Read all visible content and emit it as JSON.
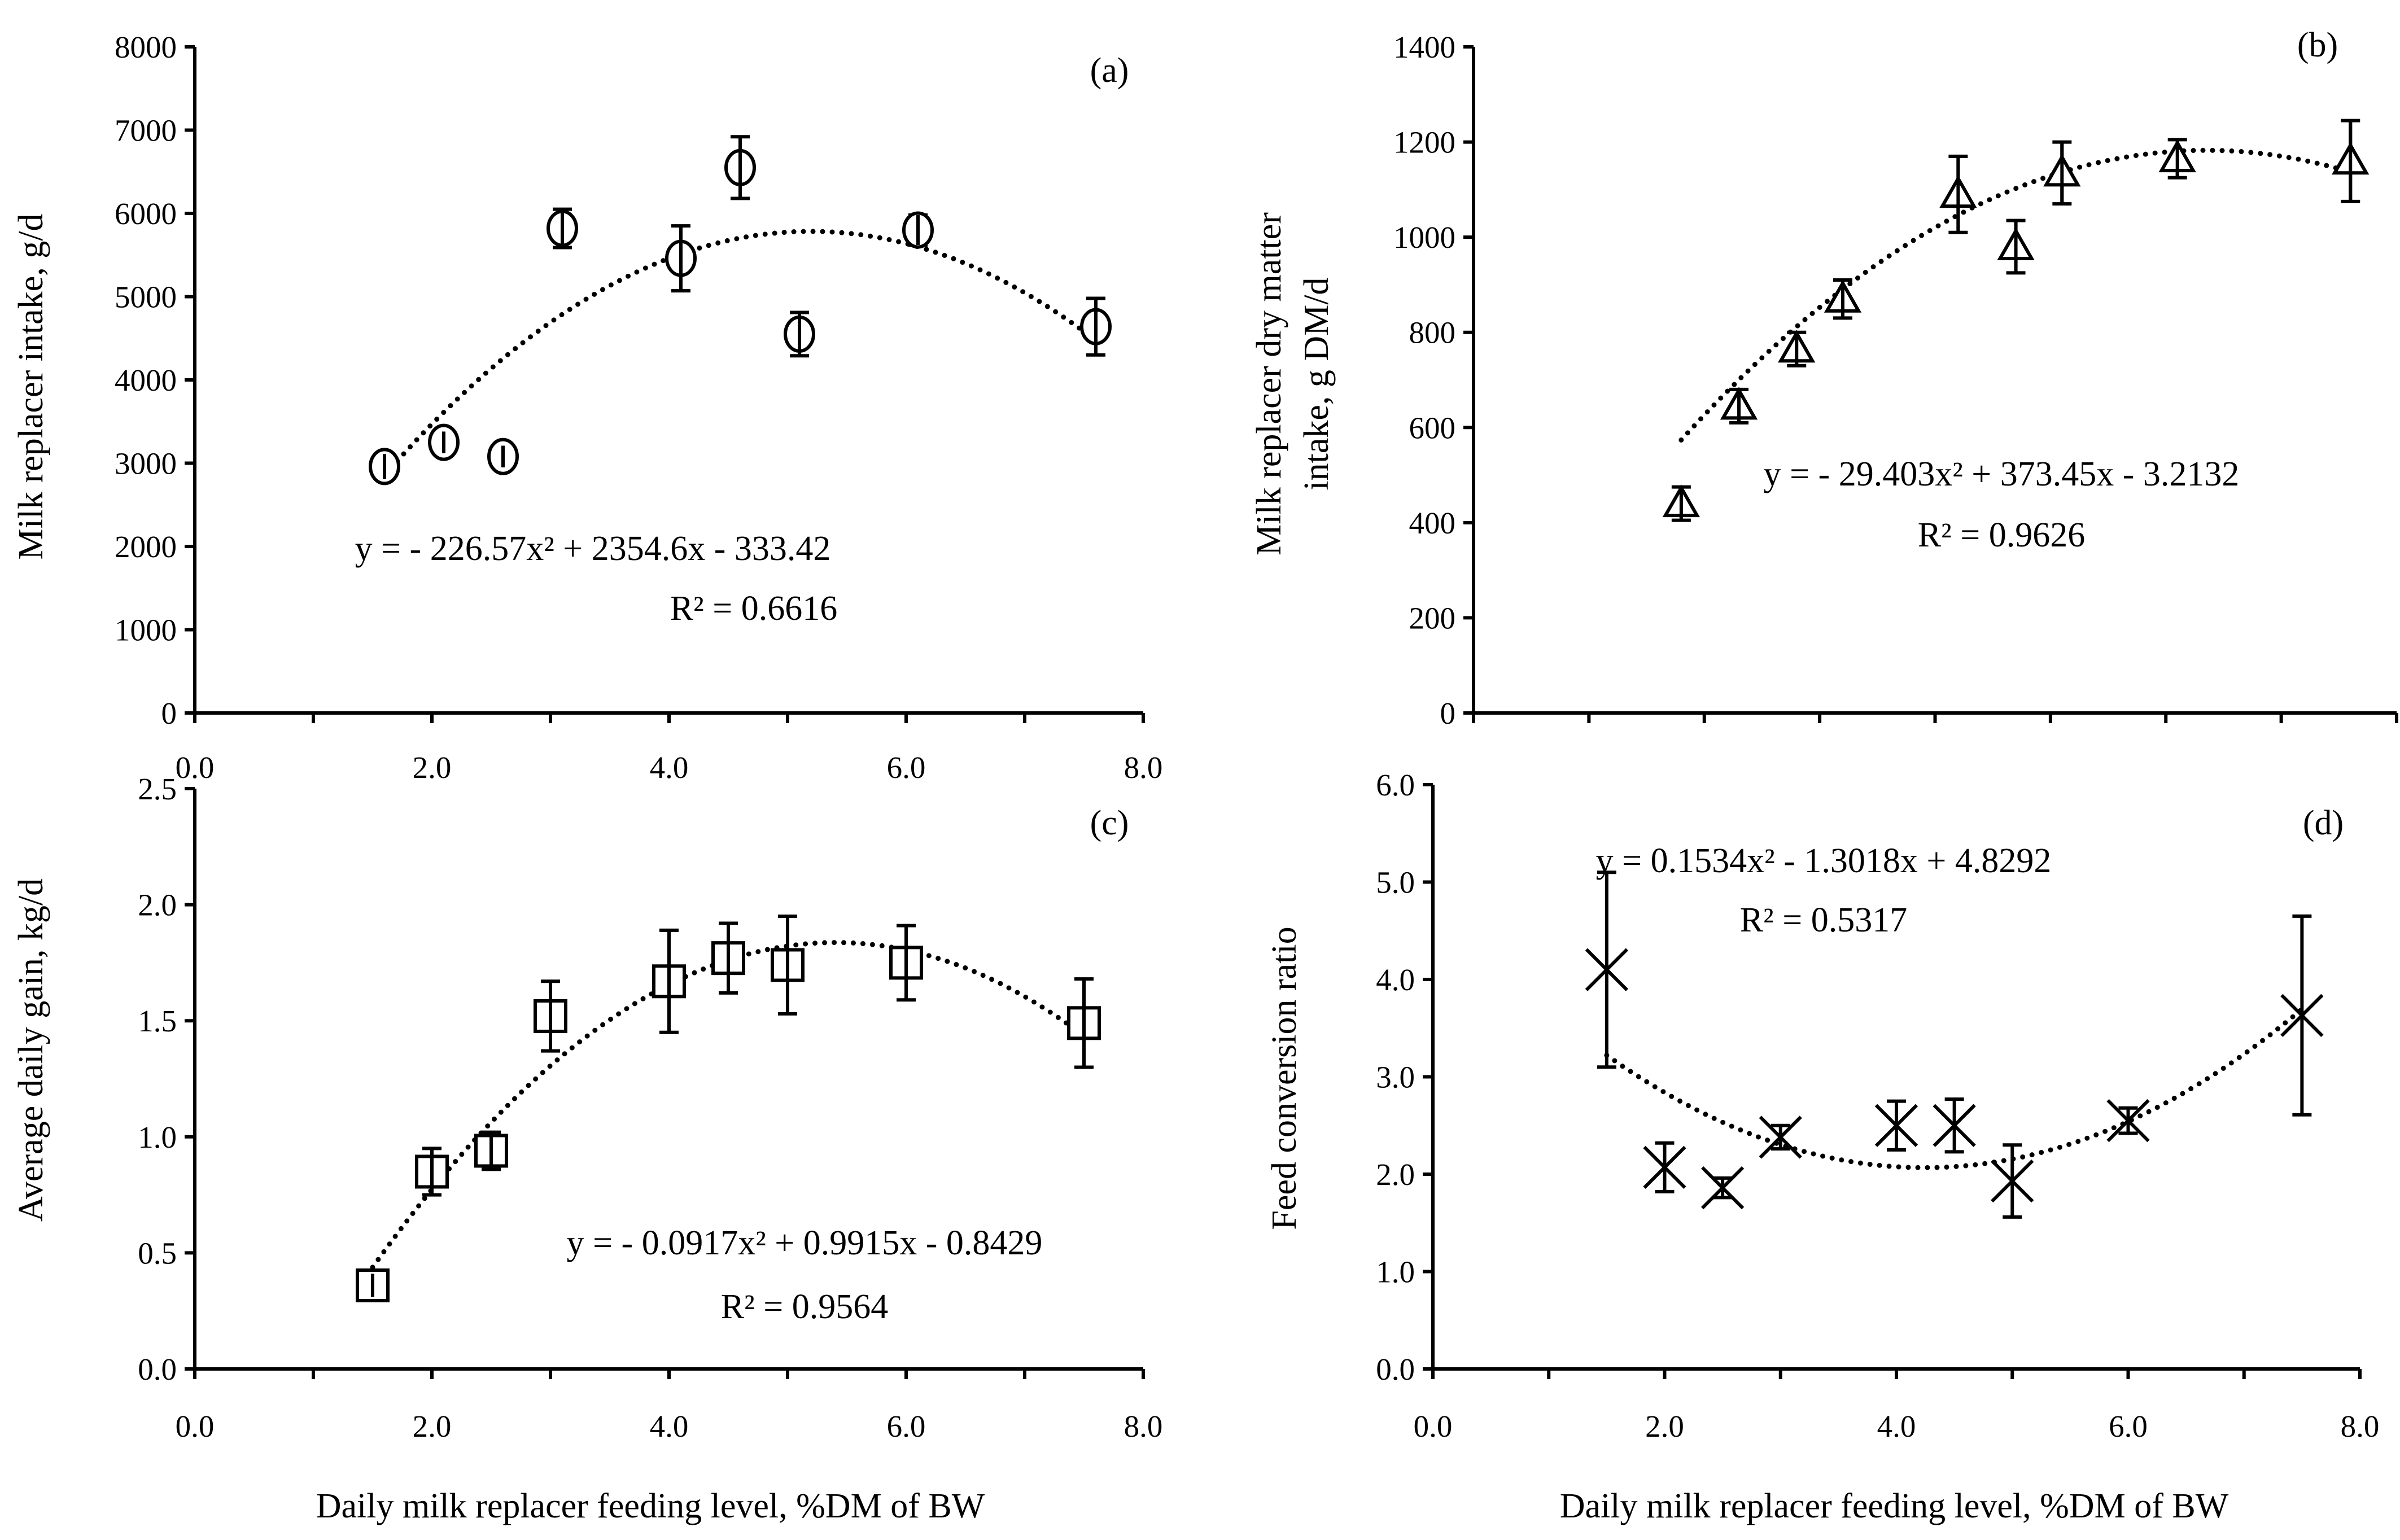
{
  "chart_data": [
    {
      "id": "a",
      "type": "scatter",
      "panel_label": "(a)",
      "xlabel": "Daily milk replacer feeding level, %DM of BW",
      "ylabel": "Milk replacer intake, g/d",
      "xlim": [
        0,
        8
      ],
      "ylim": [
        0,
        8000
      ],
      "x_ticks": [
        0,
        2,
        4,
        6,
        8
      ],
      "x_tick_labels": [
        "0.0",
        "2.0",
        "4.0",
        "6.0",
        "8.0"
      ],
      "y_ticks": [
        0,
        1000,
        2000,
        3000,
        4000,
        5000,
        6000,
        7000,
        8000
      ],
      "y_tick_labels": [
        "0",
        "1000",
        "2000",
        "3000",
        "4000",
        "5000",
        "6000",
        "7000",
        "8000"
      ],
      "marker": "circle",
      "points": [
        {
          "x": 1.6,
          "y": 2960,
          "err": 150
        },
        {
          "x": 2.1,
          "y": 3250,
          "err": 130
        },
        {
          "x": 2.6,
          "y": 3080,
          "err": 130
        },
        {
          "x": 3.1,
          "y": 5820,
          "err": 230
        },
        {
          "x": 4.1,
          "y": 5460,
          "err": 390
        },
        {
          "x": 4.6,
          "y": 6550,
          "err": 370
        },
        {
          "x": 5.1,
          "y": 4550,
          "err": 260
        },
        {
          "x": 6.1,
          "y": 5800,
          "err": 180
        },
        {
          "x": 7.6,
          "y": 4640,
          "err": 340
        }
      ],
      "trendline": {
        "a": -226.57,
        "b": 2354.6,
        "c": -333.42,
        "x_range": [
          1.6,
          7.6
        ]
      },
      "equation": "y =  - 226.57x² + 2354.6x - 333.42",
      "r_squared": "R² = 0.6616"
    },
    {
      "id": "b",
      "type": "scatter",
      "panel_label": "(b)",
      "xlabel": "",
      "ylabel_lines": [
        "Milk replacer dry matter",
        "intake, g DM/d"
      ],
      "xlim": [
        0,
        8
      ],
      "ylim": [
        0,
        1400
      ],
      "x_ticks": [],
      "x_tick_labels": [],
      "y_ticks": [
        0,
        200,
        400,
        600,
        800,
        1000,
        1200,
        1400
      ],
      "y_tick_labels": [
        "0",
        "200",
        "400",
        "600",
        "800",
        "1000",
        "1200",
        "1400"
      ],
      "marker": "triangle",
      "points": [
        {
          "x": 1.8,
          "y": 440,
          "err": 35
        },
        {
          "x": 2.3,
          "y": 645,
          "err": 35
        },
        {
          "x": 2.8,
          "y": 765,
          "err": 35
        },
        {
          "x": 3.2,
          "y": 870,
          "err": 40
        },
        {
          "x": 4.2,
          "y": 1090,
          "err": 80
        },
        {
          "x": 4.7,
          "y": 980,
          "err": 55
        },
        {
          "x": 5.1,
          "y": 1135,
          "err": 65
        },
        {
          "x": 6.1,
          "y": 1165,
          "err": 40
        },
        {
          "x": 7.6,
          "y": 1160,
          "err": 85
        }
      ],
      "trendline": {
        "a": -29.403,
        "b": 373.45,
        "c": -3.2132,
        "x_range": [
          1.8,
          7.6
        ]
      },
      "equation": "y =  - 29.403x² + 373.45x - 3.2132",
      "r_squared": "R² = 0.9626"
    },
    {
      "id": "c",
      "type": "scatter",
      "panel_label": "(c)",
      "xlabel": "Daily milk replacer feeding level, %DM of BW",
      "ylabel": "Average daily gain, kg/d",
      "xlim": [
        0,
        8
      ],
      "ylim": [
        0,
        2.5
      ],
      "x_ticks": [
        0,
        2,
        4,
        6,
        8
      ],
      "x_tick_labels": [
        "0.0",
        "2.0",
        "4.0",
        "6.0",
        "8.0"
      ],
      "y_ticks": [
        0,
        0.5,
        1.0,
        1.5,
        2.0,
        2.5
      ],
      "y_tick_labels": [
        "0.0",
        "0.5",
        "1.0",
        "1.5",
        "2.0",
        "2.5"
      ],
      "marker": "square",
      "points": [
        {
          "x": 1.5,
          "y": 0.36,
          "err": 0.05
        },
        {
          "x": 2.0,
          "y": 0.85,
          "err": 0.1
        },
        {
          "x": 2.5,
          "y": 0.94,
          "err": 0.08
        },
        {
          "x": 3.0,
          "y": 1.52,
          "err": 0.15
        },
        {
          "x": 4.0,
          "y": 1.67,
          "err": 0.22
        },
        {
          "x": 4.5,
          "y": 1.77,
          "err": 0.15
        },
        {
          "x": 5.0,
          "y": 1.74,
          "err": 0.21
        },
        {
          "x": 6.0,
          "y": 1.75,
          "err": 0.16
        },
        {
          "x": 7.5,
          "y": 1.49,
          "err": 0.19
        }
      ],
      "trendline": {
        "a": -0.0917,
        "b": 0.9915,
        "c": -0.8429,
        "x_range": [
          1.5,
          7.5
        ]
      },
      "equation": "y =  - 0.0917x² + 0.9915x - 0.8429",
      "r_squared": "R² = 0.9564"
    },
    {
      "id": "d",
      "type": "scatter",
      "panel_label": "(d)",
      "xlabel": "Daily milk replacer feeding level, %DM of BW",
      "ylabel": "Feed conversion ratio",
      "xlim": [
        0,
        8
      ],
      "ylim": [
        0,
        6
      ],
      "x_ticks": [
        0,
        2,
        4,
        6,
        8
      ],
      "x_tick_labels": [
        "0.0",
        "2.0",
        "4.0",
        "6.0",
        "8.0"
      ],
      "y_ticks": [
        0,
        1,
        2,
        3,
        4,
        5,
        6
      ],
      "y_tick_labels": [
        "0.0",
        "1.0",
        "2.0",
        "3.0",
        "4.0",
        "5.0",
        "6.0"
      ],
      "marker": "cross",
      "points": [
        {
          "x": 1.5,
          "y": 4.1,
          "err": 1.0
        },
        {
          "x": 2.0,
          "y": 2.07,
          "err": 0.25
        },
        {
          "x": 2.5,
          "y": 1.86,
          "err": 0.1
        },
        {
          "x": 3.0,
          "y": 2.38,
          "err": 0.12
        },
        {
          "x": 4.0,
          "y": 2.5,
          "err": 0.25
        },
        {
          "x": 4.5,
          "y": 2.5,
          "err": 0.27
        },
        {
          "x": 5.0,
          "y": 1.93,
          "err": 0.37
        },
        {
          "x": 6.0,
          "y": 2.55,
          "err": 0.13
        },
        {
          "x": 7.5,
          "y": 3.63,
          "err": 1.02
        }
      ],
      "trendline": {
        "a": 0.1534,
        "b": -1.3018,
        "c": 4.8292,
        "x_range": [
          1.5,
          7.5
        ]
      },
      "equation": "y = 0.1534x² - 1.3018x + 4.8292",
      "r_squared": "R² = 0.5317"
    }
  ]
}
